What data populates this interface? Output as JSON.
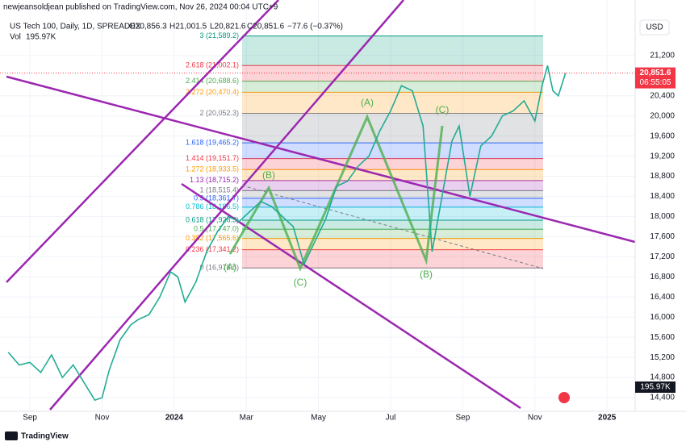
{
  "chart_data": {
    "type": "line",
    "publisher": "newjeansoldjean published on TradingView.com, Nov 26, 2024 00:04 UTC+9",
    "title": "US Tech 100, Daily, 1D, SPREADEX",
    "ohlc_labels": [
      "O20,856.3",
      "H21,001.5",
      "L20,821.6",
      "C20,851.6"
    ],
    "change_label": "−77.6 (−0.37%)",
    "volume_title": "Vol",
    "volume_label": "195.97K",
    "currency": "USD",
    "last_price": {
      "value": 20851.6,
      "label": "20,851.6"
    },
    "countdown": "06:55:05",
    "brand": "TradingView",
    "series": [
      {
        "name": "US Tech 100",
        "color": "#22ab94",
        "x": [
          -0.6,
          -0.3,
          0,
          0.3,
          0.6,
          0.9,
          1.2,
          1.5,
          1.8,
          2.0,
          2.2,
          2.5,
          2.8,
          3.0,
          3.3,
          3.6,
          3.9,
          4.1,
          4.3,
          4.6,
          4.9,
          5.2,
          5.5,
          5.8,
          6.1,
          6.4,
          6.7,
          7.0,
          7.3,
          7.6,
          7.9,
          8.2,
          8.5,
          8.8,
          9.1,
          9.4,
          9.7,
          10.0,
          10.3,
          10.6,
          10.9,
          11.15,
          11.4,
          11.7,
          11.9,
          12.2,
          12.5,
          12.8,
          13.1,
          13.4,
          13.7,
          14.0,
          14.2,
          14.35,
          14.5,
          14.65,
          14.85
        ],
        "values": [
          15300,
          15050,
          15100,
          14900,
          15250,
          14800,
          15050,
          14700,
          14350,
          14400,
          14950,
          15550,
          15850,
          15950,
          16050,
          16400,
          16900,
          16800,
          16300,
          16700,
          17300,
          17700,
          18000,
          17900,
          18100,
          18300,
          18200,
          18000,
          17800,
          17050,
          17500,
          17950,
          18600,
          18700,
          19000,
          19200,
          19700,
          20100,
          20600,
          20500,
          19800,
          17300,
          18300,
          19500,
          19800,
          18400,
          19400,
          19600,
          20000,
          20100,
          20300,
          19900,
          20600,
          21000,
          20500,
          20400,
          20851.6
        ]
      }
    ],
    "fib_levels": [
      {
        "label": "0 (16,978.5)",
        "price": 16978.5,
        "color": "#787b86"
      },
      {
        "label": "0.236 (17,341.2)",
        "price": 17341.2,
        "color": "#f23645"
      },
      {
        "label": "0.382 (17,565.6)",
        "price": 17565.6,
        "color": "#ff9800"
      },
      {
        "label": "0.5 (17,747.0)",
        "price": 17747.0,
        "color": "#4caf50"
      },
      {
        "label": "0.618 (17,928.3)",
        "price": 17928.3,
        "color": "#089981"
      },
      {
        "label": "0.786 (18,186.5)",
        "price": 18186.5,
        "color": "#00bcd4"
      },
      {
        "label": "0.9 (18,361.7)",
        "price": 18361.7,
        "color": "#2962ff"
      },
      {
        "label": "1 (18,515.4)",
        "price": 18515.4,
        "color": "#787b86"
      },
      {
        "label": "1.13 (18,715.2)",
        "price": 18715.2,
        "color": "#9c27b0"
      },
      {
        "label": "1.272 (18,933.5)",
        "price": 18933.5,
        "color": "#ff9800"
      },
      {
        "label": "1.414 (19,151.7)",
        "price": 19151.7,
        "color": "#f23645"
      },
      {
        "label": "1.618 (19,465.2)",
        "price": 19465.2,
        "color": "#2962ff"
      },
      {
        "label": "2 (20,052.3)",
        "price": 20052.3,
        "color": "#787b86"
      },
      {
        "label": "2.272 (20,470.4)",
        "price": 20470.4,
        "color": "#ff9800"
      },
      {
        "label": "2.414 (20,688.6)",
        "price": 20688.6,
        "color": "#4caf50"
      },
      {
        "label": "2.618 (21,002.1)",
        "price": 21002.1,
        "color": "#f23645"
      },
      {
        "label": "3 (21,589.2)",
        "price": 21589.2,
        "color": "#089981"
      }
    ],
    "wave_labels": [
      "(A)",
      "(B)",
      "(C)",
      "(A)",
      "(C)",
      "(B)"
    ],
    "xlim": [
      -0.83,
      16.78
    ],
    "xticks": [
      {
        "value": 0,
        "label": "Sep"
      },
      {
        "value": 2,
        "label": "Nov"
      },
      {
        "value": 4,
        "label": "2024"
      },
      {
        "value": 6,
        "label": "Mar"
      },
      {
        "value": 8,
        "label": "May"
      },
      {
        "value": 10,
        "label": "Jul"
      },
      {
        "value": 12,
        "label": "Sep"
      },
      {
        "value": 14,
        "label": "Nov"
      },
      {
        "value": 16,
        "label": "2025"
      }
    ],
    "ylim": [
      14128,
      22304
    ],
    "yticks": [
      {
        "value": 14400,
        "label": "14,400"
      },
      {
        "value": 14800,
        "label": "14,800"
      },
      {
        "value": 15200,
        "label": "15,200"
      },
      {
        "value": 15600,
        "label": "15,600"
      },
      {
        "value": 16000,
        "label": "16,000"
      },
      {
        "value": 16400,
        "label": "16,400"
      },
      {
        "value": 16800,
        "label": "16,800"
      },
      {
        "value": 17200,
        "label": "17,200"
      },
      {
        "value": 17600,
        "label": "17,600"
      },
      {
        "value": 18000,
        "label": "18,000"
      },
      {
        "value": 18400,
        "label": "18,400"
      },
      {
        "value": 18800,
        "label": "18,800"
      },
      {
        "value": 19200,
        "label": "19,200"
      },
      {
        "value": 19600,
        "label": "19,600"
      },
      {
        "value": 20000,
        "label": "20,000"
      },
      {
        "value": 20400,
        "label": "20,400"
      },
      {
        "value": 21200,
        "label": "21,200"
      }
    ],
    "grid": true
  }
}
